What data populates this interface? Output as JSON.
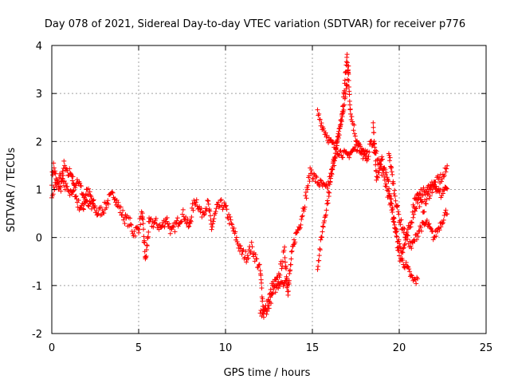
{
  "chart_data": {
    "type": "scatter",
    "title": "Day 078 of 2021, Sidereal Day-to-day VTEC variation (SDTVAR) for receiver p776",
    "xlabel": "GPS time / hours",
    "ylabel": "SDTVAR / TECUs",
    "xlim": [
      0,
      25
    ],
    "ylim": [
      -2,
      4
    ],
    "xticks": [
      0,
      5,
      10,
      15,
      20,
      25
    ],
    "yticks": [
      -2,
      -1,
      0,
      1,
      2,
      3,
      4
    ],
    "grid": true,
    "marker": "plus",
    "color": "#ff0000",
    "series": [
      {
        "name": "SDTVAR",
        "anchors": [
          [
            0.0,
            1.2
          ],
          [
            0.1,
            1.5
          ],
          [
            0.3,
            1.1
          ],
          [
            0.5,
            1.0
          ],
          [
            0.7,
            1.5
          ],
          [
            0.9,
            1.3
          ],
          [
            1.1,
            1.4
          ],
          [
            1.3,
            1.0
          ],
          [
            1.5,
            0.7
          ],
          [
            1.8,
            0.6
          ],
          [
            2.0,
            1.0
          ],
          [
            2.3,
            0.8
          ],
          [
            2.6,
            0.5
          ],
          [
            3.0,
            0.6
          ],
          [
            3.3,
            0.8
          ],
          [
            3.6,
            0.9
          ],
          [
            3.9,
            0.6
          ],
          [
            4.2,
            0.4
          ],
          [
            4.5,
            0.3
          ],
          [
            4.7,
            0.1
          ],
          [
            5.0,
            0.2
          ],
          [
            5.2,
            0.5
          ],
          [
            5.4,
            -0.5
          ],
          [
            5.6,
            0.3
          ],
          [
            6.0,
            0.3
          ],
          [
            6.3,
            0.2
          ],
          [
            6.6,
            0.4
          ],
          [
            6.9,
            0.1
          ],
          [
            7.2,
            0.3
          ],
          [
            7.6,
            0.5
          ],
          [
            7.9,
            0.2
          ],
          [
            8.1,
            0.6
          ],
          [
            8.3,
            0.8
          ],
          [
            8.6,
            0.5
          ],
          [
            9.0,
            0.7
          ],
          [
            9.2,
            0.2
          ],
          [
            9.5,
            0.6
          ],
          [
            9.8,
            0.7
          ],
          [
            10.0,
            0.6
          ],
          [
            10.3,
            0.3
          ],
          [
            10.6,
            0.0
          ],
          [
            10.9,
            -0.3
          ],
          [
            11.2,
            -0.4
          ],
          [
            11.5,
            -0.2
          ],
          [
            11.8,
            -0.5
          ],
          [
            12.0,
            -0.7
          ],
          [
            12.2,
            -1.6
          ],
          [
            12.5,
            -1.3
          ],
          [
            12.7,
            -1.0
          ],
          [
            13.0,
            -0.9
          ],
          [
            13.2,
            -0.6
          ],
          [
            13.4,
            -0.3
          ],
          [
            13.6,
            -1.1
          ],
          [
            13.8,
            -0.4
          ],
          [
            14.0,
            0.0
          ],
          [
            14.3,
            0.3
          ],
          [
            14.6,
            0.8
          ],
          [
            14.9,
            1.4
          ],
          [
            15.2,
            1.2
          ],
          [
            15.5,
            1.1
          ],
          [
            15.8,
            1.0
          ],
          [
            16.1,
            1.3
          ],
          [
            16.4,
            1.9
          ],
          [
            16.7,
            2.5
          ],
          [
            17.0,
            3.8
          ],
          [
            17.2,
            2.6
          ],
          [
            17.5,
            2.1
          ],
          [
            17.8,
            1.8
          ],
          [
            18.1,
            1.6
          ],
          [
            18.4,
            2.0
          ],
          [
            18.7,
            1.7
          ],
          [
            19.0,
            1.4
          ],
          [
            19.3,
            1.0
          ],
          [
            19.6,
            0.5
          ],
          [
            19.9,
            0.0
          ],
          [
            20.2,
            -0.3
          ],
          [
            20.5,
            0.1
          ],
          [
            20.8,
            0.5
          ],
          [
            21.1,
            0.8
          ],
          [
            21.4,
            0.6
          ],
          [
            21.7,
            0.9
          ],
          [
            22.0,
            1.1
          ],
          [
            22.3,
            1.2
          ],
          [
            22.6,
            1.3
          ],
          [
            22.8,
            1.5
          ]
        ],
        "branches": [
          [
            [
              0.0,
              0.9
            ],
            [
              0.5,
              1.3
            ],
            [
              1.0,
              0.9
            ],
            [
              1.5,
              1.2
            ],
            [
              2.0,
              0.7
            ],
            [
              2.5,
              0.6
            ]
          ],
          [
            [
              12.0,
              -1.6
            ],
            [
              12.4,
              -1.5
            ],
            [
              12.8,
              -1.1
            ],
            [
              13.2,
              -0.9
            ],
            [
              13.7,
              -1.0
            ]
          ],
          [
            [
              15.3,
              -0.6
            ],
            [
              15.6,
              0.2
            ],
            [
              15.9,
              0.8
            ],
            [
              16.2,
              1.6
            ],
            [
              16.6,
              2.3
            ],
            [
              16.9,
              2.9
            ],
            [
              17.1,
              3.6
            ]
          ],
          [
            [
              15.3,
              2.6
            ],
            [
              15.6,
              2.3
            ],
            [
              16.0,
              2.0
            ],
            [
              16.5,
              1.8
            ],
            [
              17.0,
              1.7
            ],
            [
              17.6,
              1.9
            ],
            [
              18.2,
              1.7
            ]
          ],
          [
            [
              18.5,
              2.4
            ],
            [
              18.7,
              1.2
            ],
            [
              19.0,
              1.6
            ],
            [
              19.3,
              1.3
            ],
            [
              19.6,
              0.6
            ],
            [
              20.0,
              -0.4
            ],
            [
              20.4,
              -0.6
            ],
            [
              20.8,
              -0.9
            ],
            [
              21.1,
              -0.9
            ]
          ],
          [
            [
              19.4,
              1.8
            ],
            [
              19.7,
              1.0
            ],
            [
              20.0,
              0.4
            ],
            [
              20.3,
              0.1
            ],
            [
              20.7,
              -0.2
            ],
            [
              21.2,
              0.2
            ],
            [
              21.6,
              0.3
            ],
            [
              22.0,
              0.0
            ],
            [
              22.4,
              0.3
            ],
            [
              22.8,
              0.6
            ]
          ],
          [
            [
              20.8,
              0.7
            ],
            [
              21.2,
              0.9
            ],
            [
              21.6,
              1.0
            ],
            [
              22.0,
              1.1
            ],
            [
              22.4,
              0.9
            ],
            [
              22.8,
              1.1
            ]
          ]
        ]
      }
    ]
  }
}
